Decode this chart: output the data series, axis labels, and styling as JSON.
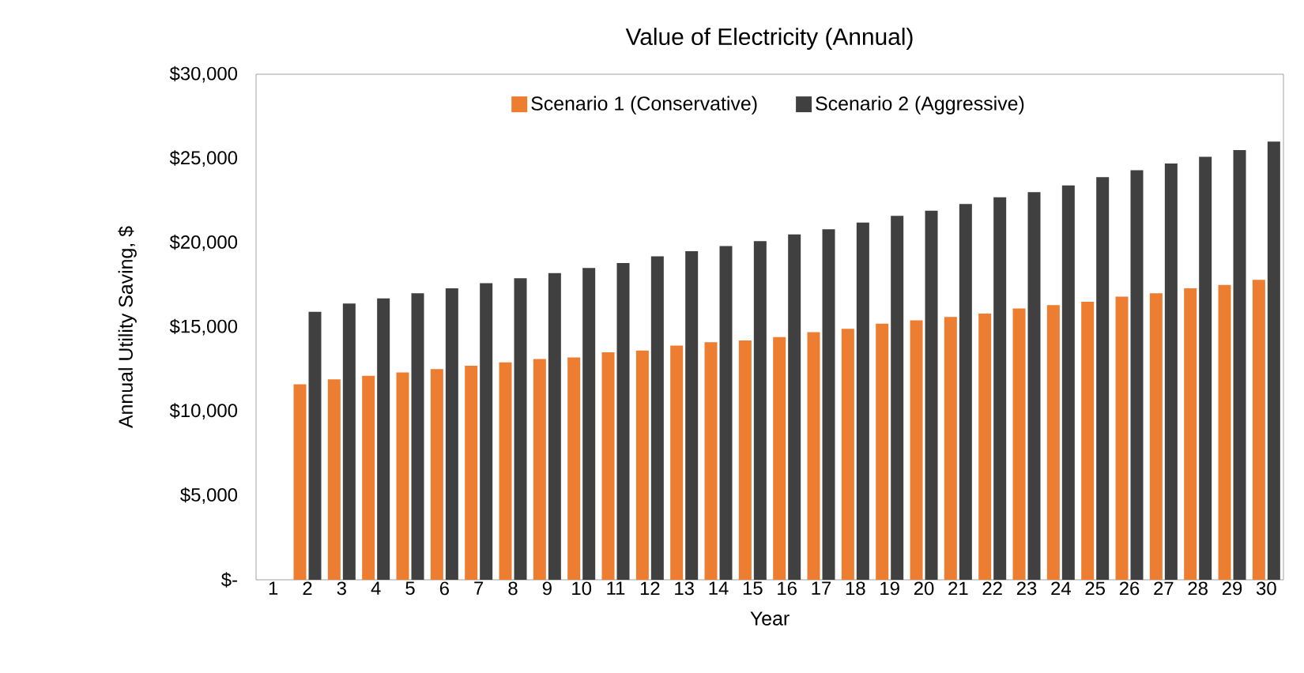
{
  "chart_data": {
    "type": "bar",
    "title": "Value of Electricity (Annual)",
    "xlabel": "Year",
    "ylabel": "Annual Utility Saving, $",
    "categories": [
      "1",
      "2",
      "3",
      "4",
      "5",
      "6",
      "7",
      "8",
      "9",
      "10",
      "11",
      "12",
      "13",
      "14",
      "15",
      "16",
      "17",
      "18",
      "19",
      "20",
      "21",
      "22",
      "23",
      "24",
      "25",
      "26",
      "27",
      "28",
      "29",
      "30"
    ],
    "series": [
      {
        "name": "Scenario 1 (Conservative)",
        "color": "#ed7d31",
        "values": [
          null,
          11600,
          11900,
          12100,
          12300,
          12500,
          12700,
          12900,
          13100,
          13200,
          13500,
          13600,
          13900,
          14100,
          14200,
          14400,
          14700,
          14900,
          15200,
          15400,
          15600,
          15800,
          16100,
          16300,
          16500,
          16800,
          17000,
          17300,
          17500,
          17800
        ]
      },
      {
        "name": "Scenario 2 (Aggressive)",
        "color": "#404040",
        "values": [
          null,
          15900,
          16400,
          16700,
          17000,
          17300,
          17600,
          17900,
          18200,
          18500,
          18800,
          19200,
          19500,
          19800,
          20100,
          20500,
          20800,
          21200,
          21600,
          21900,
          22300,
          22700,
          23000,
          23400,
          23900,
          24300,
          24700,
          25100,
          25500,
          26000
        ]
      }
    ],
    "ylim": [
      0,
      30000
    ],
    "yticks": [
      {
        "value": 0,
        "label": "$-"
      },
      {
        "value": 5000,
        "label": "$5,000"
      },
      {
        "value": 10000,
        "label": "$10,000"
      },
      {
        "value": 15000,
        "label": "$15,000"
      },
      {
        "value": 20000,
        "label": "$20,000"
      },
      {
        "value": 25000,
        "label": "$25,000"
      },
      {
        "value": 30000,
        "label": "$30,000"
      }
    ],
    "grid": false,
    "legend": "top"
  }
}
